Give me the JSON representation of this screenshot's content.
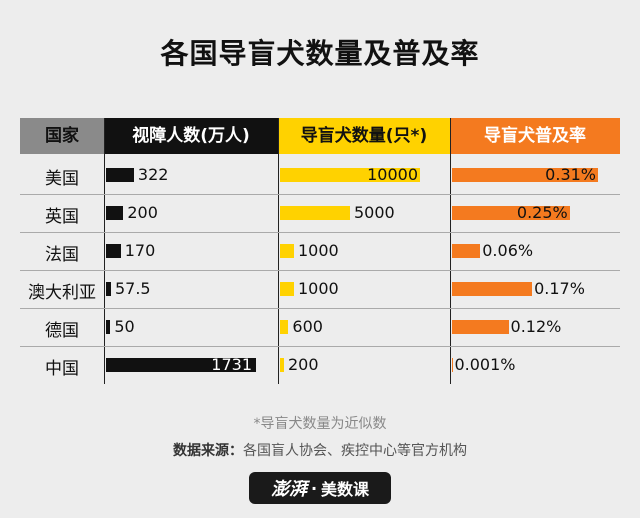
{
  "title": "各国导盲犬数量及普及率",
  "colors": {
    "black": "#111111",
    "yellow": "#ffd200",
    "orange": "#f47a1f",
    "header_gray": "#8a8a8a"
  },
  "chart_data": {
    "type": "table",
    "columns": [
      "国家",
      "视障人数(万人)",
      "导盲犬数量(只*)",
      "导盲犬普及率"
    ],
    "rows": [
      {
        "country": "美国",
        "blind": "322",
        "dogs": "10000",
        "rate": "0.31%"
      },
      {
        "country": "英国",
        "blind": "200",
        "dogs": "5000",
        "rate": "0.25%"
      },
      {
        "country": "法国",
        "blind": "170",
        "dogs": "1000",
        "rate": "0.06%"
      },
      {
        "country": "澳大利亚",
        "blind": "57.5",
        "dogs": "1000",
        "rate": "0.17%"
      },
      {
        "country": "德国",
        "blind": "50",
        "dogs": "600",
        "rate": "0.12%"
      },
      {
        "country": "中国",
        "blind": "1731",
        "dogs": "200",
        "rate": "0.001%"
      }
    ],
    "blind_values": [
      322,
      200,
      170,
      57.5,
      50,
      1731
    ],
    "dog_values": [
      10000,
      5000,
      1000,
      1000,
      600,
      200
    ],
    "rate_values": [
      0.31,
      0.25,
      0.06,
      0.17,
      0.12,
      0.001
    ]
  },
  "footnote": "*导盲犬数量为近似数",
  "source_label": "数据来源：",
  "source_text": "各国盲人协会、疾控中心等官方机构",
  "logo": {
    "brand": "澎湃",
    "sep": "·",
    "name": "美数课"
  }
}
